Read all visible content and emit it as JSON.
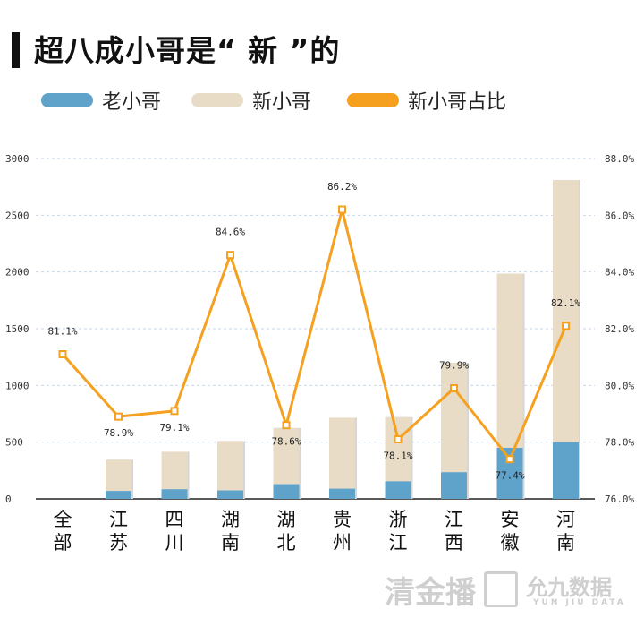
{
  "header": {
    "title": "超八成小哥是“ 新 ”的"
  },
  "colors": {
    "old": "#5fa3cb",
    "new": "#e8dcc7",
    "ratio": "#f5a11f",
    "grid": "#c9d6e8"
  },
  "chart_data": {
    "type": "bar",
    "stacked": true,
    "categories": [
      "全部",
      "江苏",
      "四川",
      "湖南",
      "湖北",
      "贵州",
      "浙江",
      "江西",
      "安徽",
      "河南"
    ],
    "category_lines": [
      [
        "全",
        "部"
      ],
      [
        "江",
        "苏"
      ],
      [
        "四",
        "川"
      ],
      [
        "湖",
        "南"
      ],
      [
        "湖",
        "北"
      ],
      [
        "贵",
        "州"
      ],
      [
        "浙",
        "江"
      ],
      [
        "江",
        "西"
      ],
      [
        "安",
        "徽"
      ],
      [
        "河",
        "南"
      ]
    ],
    "series": [
      {
        "name": "老小哥",
        "type": "bar",
        "values": [
          null,
          70,
          85,
          75,
          130,
          90,
          155,
          235,
          450,
          500
        ]
      },
      {
        "name": "新小哥",
        "type": "bar",
        "values": [
          null,
          275,
          330,
          435,
          495,
          625,
          565,
          965,
          1535,
          2310
        ]
      },
      {
        "name": "新小哥占比",
        "type": "line",
        "axis": "right",
        "values": [
          81.1,
          78.9,
          79.1,
          84.6,
          78.6,
          86.2,
          78.1,
          79.9,
          77.4,
          82.1
        ],
        "labels": [
          "81.1%",
          "78.9%",
          "79.1%",
          "84.6%",
          "78.6%",
          "86.2%",
          "78.1%",
          "79.9%",
          "77.4%",
          "82.1%"
        ]
      }
    ],
    "ylim": [
      0,
      3000
    ],
    "y_ticks": [
      "0",
      "500",
      "1000",
      "1500",
      "2000",
      "2500",
      "3000"
    ],
    "y2lim": [
      76,
      88
    ],
    "y2_ticks": [
      "76.0%",
      "78.0%",
      "80.0%",
      "82.0%",
      "84.0%",
      "86.0%",
      "88.0%"
    ],
    "grid": true,
    "legend_position": "top-left"
  },
  "watermarks": {
    "left": "清金播",
    "right_main": "允九数据",
    "right_sub": "YUN JIU DATA"
  }
}
